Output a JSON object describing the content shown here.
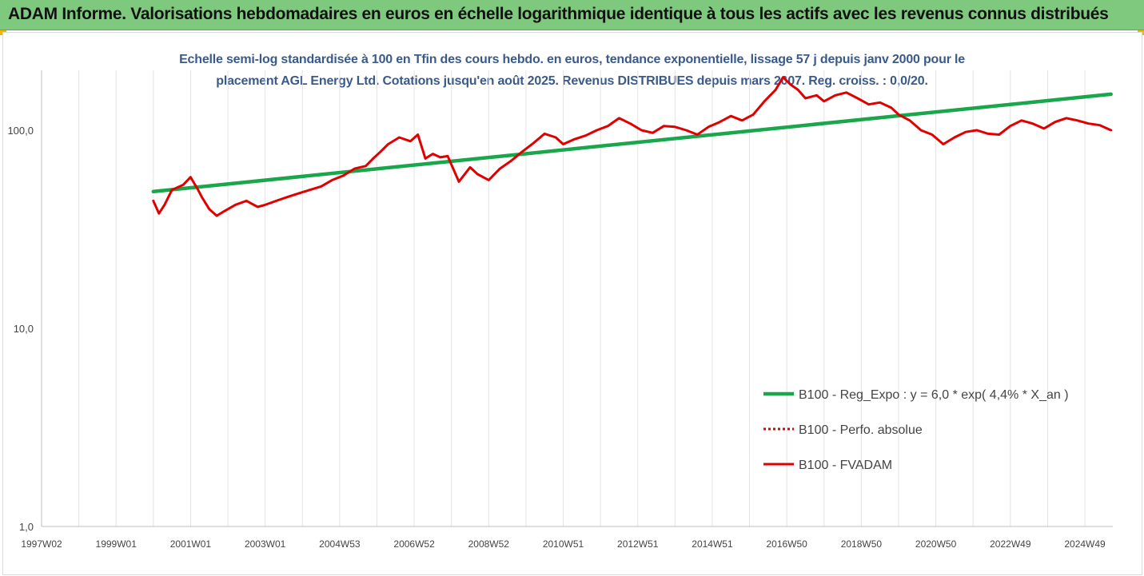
{
  "banner": {
    "title": "ADAM Informe. Valorisations hebdomadaires en euros en échelle logarithmique identique à tous les actifs avec les revenus connus distribués"
  },
  "colors": {
    "banner_bg": "#7fc97f",
    "trend": "#1aa64a",
    "perf": "#e00000",
    "fvadam": "#e00000",
    "title_text": "#3a5a8a",
    "corner": "#f5b400"
  },
  "chart_data": {
    "type": "line",
    "title_line1": "Echelle semi-log standardisée à 100 en Tfin des cours hebdo. en euros, tendance exponentielle, lissage 57 j depuis janv 2000 pour le",
    "title_line2": "placement AGL Energy Ltd. Cotations jusqu'en août 2025. Revenus DISTRIBUES depuis mars 2007. Reg. croiss. : 0,0/20.",
    "y_scale": "log",
    "ylim": [
      1,
      200
    ],
    "y_ticks": [
      {
        "value": 1,
        "label": "1,0"
      },
      {
        "value": 10,
        "label": "10,0"
      },
      {
        "value": 100,
        "label": "100,0"
      }
    ],
    "xlim": [
      1997.0,
      2025.75
    ],
    "x_ticks": [
      {
        "year": 1997.0,
        "label": "1997W02"
      },
      {
        "year": 1999.0,
        "label": "1999W01"
      },
      {
        "year": 2001.0,
        "label": "2001W01"
      },
      {
        "year": 2003.0,
        "label": "2003W01"
      },
      {
        "year": 2005.0,
        "label": "2004W53"
      },
      {
        "year": 2007.0,
        "label": "2006W52"
      },
      {
        "year": 2009.0,
        "label": "2008W52"
      },
      {
        "year": 2011.0,
        "label": "2010W51"
      },
      {
        "year": 2013.0,
        "label": "2012W51"
      },
      {
        "year": 2015.0,
        "label": "2014W51"
      },
      {
        "year": 2017.0,
        "label": "2016W50"
      },
      {
        "year": 2019.0,
        "label": "2018W50"
      },
      {
        "year": 2021.0,
        "label": "2020W50"
      },
      {
        "year": 2023.0,
        "label": "2022W49"
      },
      {
        "year": 2025.0,
        "label": "2024W49"
      }
    ],
    "grid": "vertical",
    "legend_position": "bottom-right",
    "series": [
      {
        "name": "B100 - Reg_Expo : y = 6,0 * exp( 4,4% *  X_an )",
        "style": "solid-thick",
        "x": [
          2000.0,
          2025.7
        ],
        "y": [
          49,
          152
        ]
      },
      {
        "name": "B100 - Perfo. absolue",
        "style": "dotted",
        "x": [],
        "y": []
      },
      {
        "name": "B100 - FVADAM",
        "style": "solid",
        "x": [
          2000.0,
          2000.15,
          2000.3,
          2000.5,
          2000.8,
          2001.0,
          2001.2,
          2001.3,
          2001.5,
          2001.7,
          2001.9,
          2002.2,
          2002.5,
          2002.8,
          2003.0,
          2003.3,
          2003.6,
          2003.9,
          2004.2,
          2004.5,
          2004.8,
          2005.1,
          2005.4,
          2005.7,
          2005.9,
          2006.1,
          2006.3,
          2006.6,
          2006.9,
          2007.1,
          2007.3,
          2007.5,
          2007.7,
          2007.9,
          2008.2,
          2008.5,
          2008.7,
          2009.0,
          2009.3,
          2009.6,
          2009.9,
          2010.2,
          2010.5,
          2010.8,
          2011.0,
          2011.3,
          2011.6,
          2011.9,
          2012.2,
          2012.5,
          2012.8,
          2013.1,
          2013.4,
          2013.7,
          2014.0,
          2014.3,
          2014.6,
          2014.9,
          2015.2,
          2015.5,
          2015.8,
          2016.1,
          2016.4,
          2016.7,
          2016.9,
          2017.1,
          2017.3,
          2017.5,
          2017.8,
          2018.0,
          2018.3,
          2018.6,
          2018.9,
          2019.2,
          2019.5,
          2019.8,
          2020.0,
          2020.3,
          2020.6,
          2020.9,
          2021.2,
          2021.5,
          2021.8,
          2022.1,
          2022.4,
          2022.7,
          2023.0,
          2023.3,
          2023.6,
          2023.9,
          2024.2,
          2024.5,
          2024.8,
          2025.1,
          2025.4,
          2025.7
        ],
        "y": [
          44,
          38,
          42,
          50,
          53,
          58,
          50,
          46,
          40,
          37,
          39,
          42,
          44,
          41,
          42,
          44,
          46,
          48,
          50,
          52,
          56,
          59,
          64,
          66,
          72,
          78,
          85,
          92,
          88,
          95,
          72,
          76,
          73,
          74,
          55,
          65,
          60,
          56,
          64,
          70,
          78,
          86,
          96,
          92,
          85,
          90,
          94,
          100,
          105,
          115,
          108,
          100,
          97,
          105,
          104,
          100,
          95,
          104,
          110,
          118,
          112,
          120,
          140,
          160,
          185,
          170,
          160,
          145,
          150,
          140,
          150,
          155,
          145,
          135,
          138,
          130,
          120,
          112,
          100,
          95,
          85,
          92,
          98,
          100,
          96,
          95,
          105,
          112,
          108,
          102,
          110,
          115,
          112,
          108,
          106,
          100
        ]
      }
    ]
  }
}
